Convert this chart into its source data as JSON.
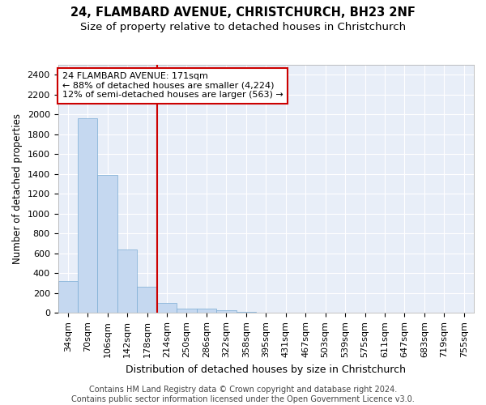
{
  "title": "24, FLAMBARD AVENUE, CHRISTCHURCH, BH23 2NF",
  "subtitle": "Size of property relative to detached houses in Christchurch",
  "xlabel": "Distribution of detached houses by size in Christchurch",
  "ylabel": "Number of detached properties",
  "categories": [
    "34sqm",
    "70sqm",
    "106sqm",
    "142sqm",
    "178sqm",
    "214sqm",
    "250sqm",
    "286sqm",
    "322sqm",
    "358sqm",
    "395sqm",
    "431sqm",
    "467sqm",
    "503sqm",
    "539sqm",
    "575sqm",
    "611sqm",
    "647sqm",
    "683sqm",
    "719sqm",
    "755sqm"
  ],
  "values": [
    320,
    1960,
    1390,
    640,
    265,
    100,
    45,
    45,
    25,
    15,
    0,
    0,
    0,
    0,
    0,
    0,
    0,
    0,
    0,
    0,
    0
  ],
  "bar_color": "#c5d8f0",
  "bar_edge_color": "#7bacd4",
  "vline_x_index": 4,
  "vline_color": "#cc0000",
  "annotation_text": "24 FLAMBARD AVENUE: 171sqm\n← 88% of detached houses are smaller (4,224)\n12% of semi-detached houses are larger (563) →",
  "annotation_box_facecolor": "#ffffff",
  "annotation_box_edgecolor": "#cc0000",
  "ylim": [
    0,
    2500
  ],
  "yticks": [
    0,
    200,
    400,
    600,
    800,
    1000,
    1200,
    1400,
    1600,
    1800,
    2000,
    2200,
    2400
  ],
  "bg_color": "#ffffff",
  "plot_bg_color": "#e8eef8",
  "grid_color": "#ffffff",
  "title_fontsize": 10.5,
  "subtitle_fontsize": 9.5,
  "xlabel_fontsize": 9,
  "ylabel_fontsize": 8.5,
  "tick_fontsize": 8,
  "annotation_fontsize": 8,
  "footer_fontsize": 7,
  "footer_text": "Contains HM Land Registry data © Crown copyright and database right 2024.\nContains public sector information licensed under the Open Government Licence v3.0."
}
